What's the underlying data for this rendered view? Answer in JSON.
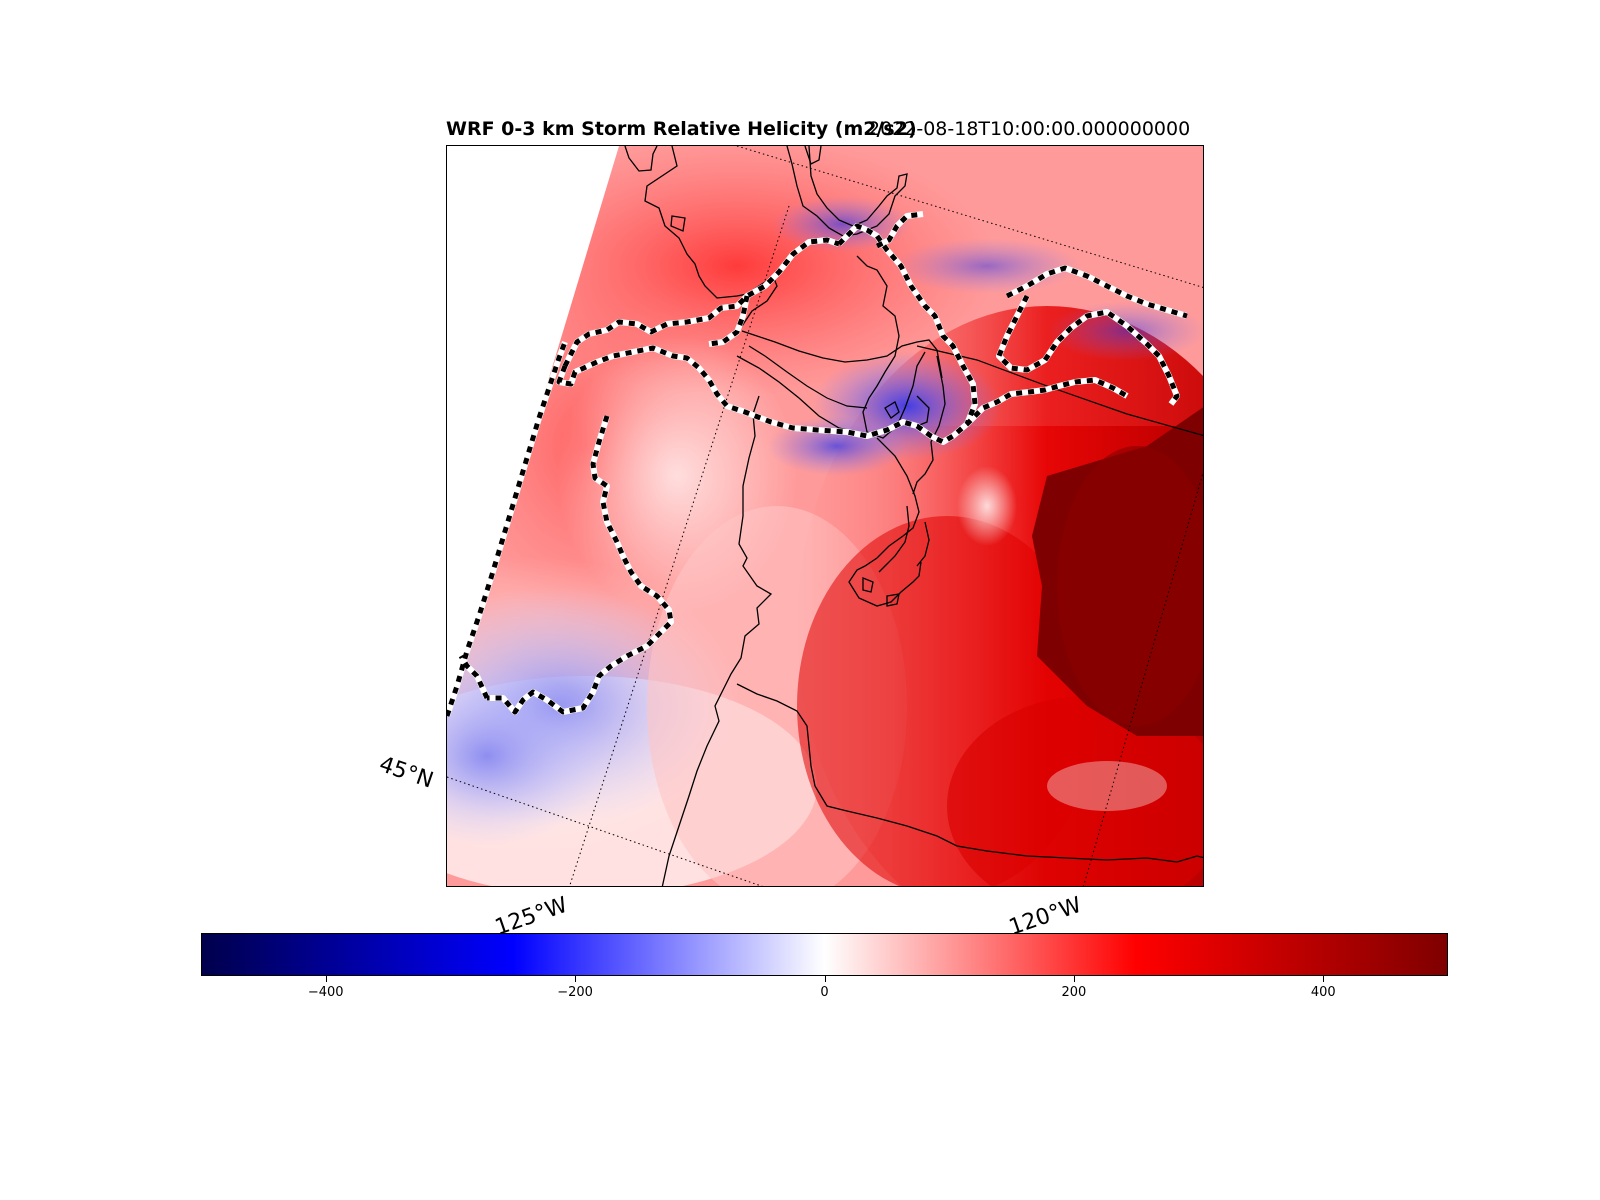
{
  "title": {
    "left": "WRF 0-3 km Storm Relative Helicity (m2/s2)",
    "right": "2022-08-18T10:00:00.000000000"
  },
  "map": {
    "gridline_labels": {
      "lat_45": "45°N",
      "lon_125": "125°W",
      "lon_120": "120°W"
    },
    "field": "0-3 km Storm Relative Helicity",
    "colormap": "seismic",
    "colors": {
      "negative_extreme": "#00004c",
      "negative": "#0000ff",
      "zero": "#ffffff",
      "positive": "#ff0000",
      "positive_extreme": "#7f0000"
    },
    "overlays": [
      "coastlines",
      "state-borders",
      "dashed-contour",
      "lat-lon-gridlines"
    ]
  },
  "colorbar": {
    "vmin": -500,
    "vmax": 500,
    "ticks": [
      "−400",
      "−200",
      "0",
      "200",
      "400"
    ],
    "tick_values": [
      -400,
      -200,
      0,
      200,
      400
    ]
  }
}
